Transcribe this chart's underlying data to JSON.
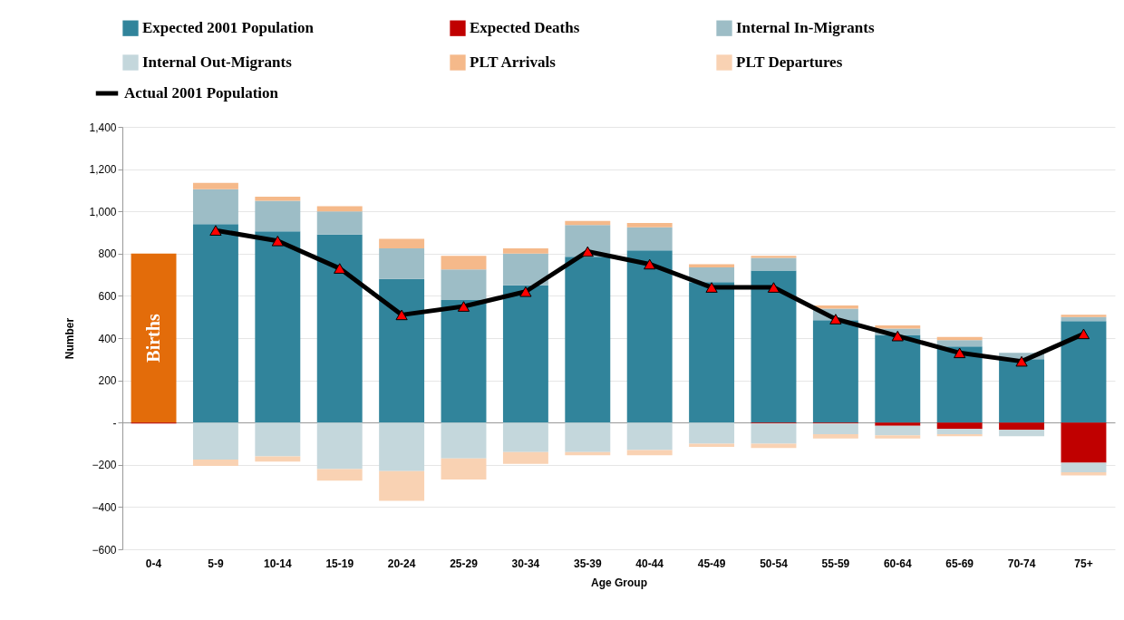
{
  "chart_data": {
    "type": "bar",
    "xlabel": "Age Group",
    "ylabel": "Number",
    "stacked": true,
    "legend": "top",
    "grid": "y",
    "categories": [
      "0-4",
      "5-9",
      "10-14",
      "15-19",
      "20-24",
      "25-29",
      "30-34",
      "35-39",
      "40-44",
      "45-49",
      "50-54",
      "55-59",
      "60-64",
      "65-69",
      "70-74",
      "75+"
    ],
    "series": [
      {
        "color": "#e36c0a",
        "values": [
          800,
          null,
          null,
          null,
          null,
          null,
          null,
          null,
          null,
          null,
          null,
          null,
          null,
          null,
          null,
          null
        ]
      },
      {
        "name": "Expected 2001 Population",
        "color": "#31849b",
        "values": [
          null,
          940,
          905,
          890,
          680,
          580,
          650,
          785,
          815,
          665,
          720,
          485,
          415,
          360,
          300,
          480
        ]
      },
      {
        "name": "Expected Deaths",
        "color": "#c00000",
        "values": [
          -5,
          0,
          0,
          0,
          0,
          0,
          0,
          0,
          0,
          0,
          -5,
          -5,
          -15,
          -30,
          -35,
          -190
        ]
      },
      {
        "name": "Internal In-Migrants",
        "color": "#9dbdc6",
        "values": [
          null,
          165,
          145,
          110,
          145,
          145,
          150,
          150,
          110,
          70,
          60,
          55,
          30,
          30,
          30,
          20
        ]
      },
      {
        "name": "Internal Out-Migrants",
        "color": "#c4d7dc",
        "values": [
          null,
          -175,
          -160,
          -220,
          -230,
          -170,
          -140,
          -140,
          -130,
          -100,
          -95,
          -50,
          -45,
          -25,
          -30,
          -45
        ]
      },
      {
        "name": "PLT Arrivals",
        "color": "#f5b98a",
        "values": [
          null,
          30,
          20,
          25,
          45,
          65,
          25,
          20,
          20,
          15,
          10,
          15,
          15,
          15,
          null,
          10
        ]
      },
      {
        "name": "PLT Departures",
        "color": "#f9d2b3",
        "values": [
          null,
          -30,
          -25,
          -55,
          -140,
          -100,
          -55,
          -15,
          -25,
          -15,
          -20,
          -20,
          -15,
          -10,
          null,
          -15
        ]
      },
      {
        "name": "Actual 2001 Population",
        "type": "line",
        "color": "#000000",
        "values": [
          null,
          910,
          860,
          730,
          510,
          550,
          620,
          810,
          750,
          640,
          640,
          490,
          410,
          330,
          290,
          420
        ]
      }
    ],
    "marker": "triangle",
    "ylim": [
      -600,
      1400
    ],
    "yticks": [
      -600,
      -400,
      -200,
      {
        "value": 0,
        "label": "-"
      },
      200,
      400,
      600,
      800,
      {
        "value": 1000,
        "label": "1,000"
      },
      {
        "value": 1200,
        "label": "1,200"
      },
      {
        "value": 1400,
        "label": "1,400"
      }
    ],
    "annotations": [
      "Births"
    ]
  }
}
